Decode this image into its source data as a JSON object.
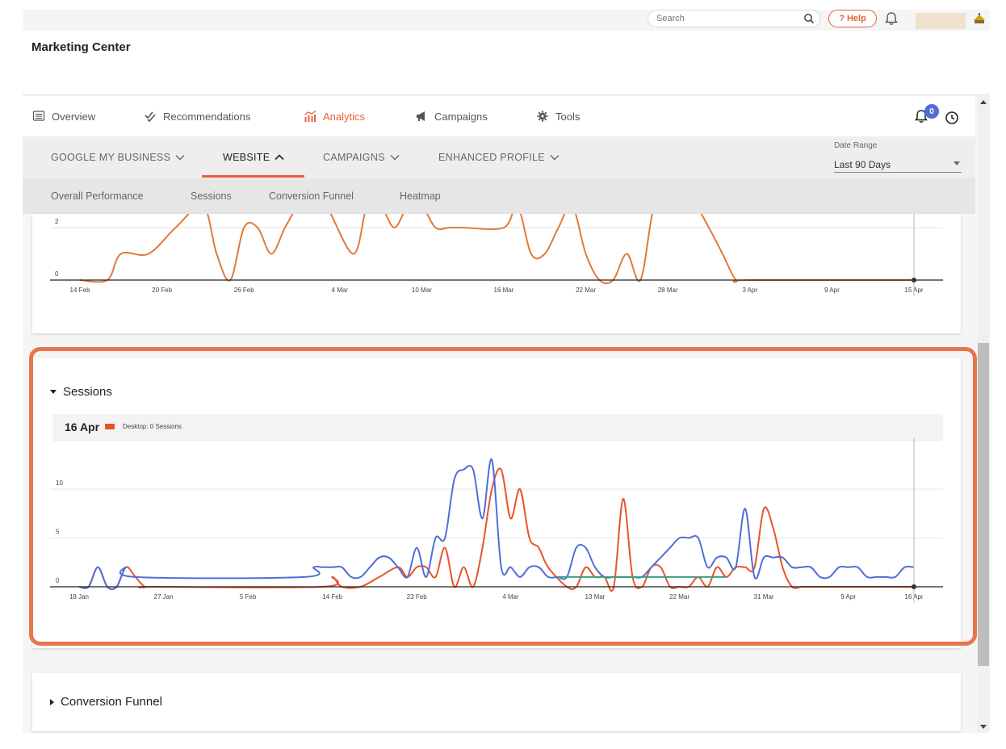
{
  "topbar": {
    "search_placeholder": "Search",
    "help_label": "? Help"
  },
  "header": {
    "title": "Marketing Center"
  },
  "main_nav": [
    {
      "label": "Overview",
      "icon": "list-icon",
      "active": false
    },
    {
      "label": "Recommendations",
      "icon": "double-check-icon",
      "active": false
    },
    {
      "label": "Analytics",
      "icon": "analytics-icon",
      "active": true
    },
    {
      "label": "Campaigns",
      "icon": "megaphone-icon",
      "active": false
    },
    {
      "label": "Tools",
      "icon": "gear-icon",
      "active": false
    }
  ],
  "notifications": {
    "count": "0"
  },
  "sub_nav": [
    {
      "label": "GOOGLE MY BUSINESS",
      "active": false
    },
    {
      "label": "WEBSITE",
      "active": true
    },
    {
      "label": "CAMPAIGNS",
      "active": false
    },
    {
      "label": "ENHANCED PROFILE",
      "active": false
    }
  ],
  "date_range": {
    "label": "Date Range",
    "value": "Last 90 Days"
  },
  "website_tabs": [
    "Overall Performance",
    "Sessions",
    "Conversion Funnel",
    "Heatmap"
  ],
  "colors": {
    "accent": "#e8603c",
    "desktop_series": "#e8542a",
    "mobile_series": "#4f6ed8",
    "tablet_series": "#3aa17e",
    "badge": "#4f6ed8"
  },
  "sessions_card": {
    "title": "Sessions",
    "tooltip": {
      "date": "16 Apr",
      "series": "Desktop",
      "text": "Desktop: 0 Sessions"
    }
  },
  "conversion_card": {
    "title": "Conversion Funnel"
  },
  "chart_data": [
    {
      "type": "line",
      "x_ticks": [
        "14 Feb",
        "20 Feb",
        "26 Feb",
        "4 Mar",
        "10 Mar",
        "16 Mar",
        "22 Mar",
        "28 Mar",
        "3 Apr",
        "9 Apr",
        "15 Apr"
      ],
      "y_ticks": [
        "0",
        "2"
      ],
      "series": [
        {
          "color": "#e07b39",
          "x": [
            "14 Feb",
            "16 Feb",
            "17 Feb",
            "19 Feb",
            "21 Feb",
            "23 Feb",
            "24 Feb",
            "25 Feb",
            "26 Feb",
            "27 Feb",
            "28 Feb",
            "29 Feb",
            "1 Mar",
            "2 Mar",
            "3 Mar",
            "5 Mar",
            "6 Mar",
            "7 Mar",
            "8 Mar",
            "9 Mar",
            "10 Mar",
            "11 Mar",
            "12 Mar",
            "13 Mar",
            "16 Mar",
            "17 Mar",
            "18 Mar",
            "19 Mar",
            "20 Mar",
            "21 Mar",
            "22 Mar",
            "23 Mar",
            "24 Mar",
            "25 Mar",
            "26 Mar",
            "27 Mar",
            "28 Mar",
            "29 Mar",
            "30 Mar",
            "31 Mar",
            "1 Apr",
            "2 Apr",
            "3 Apr",
            "15 Apr"
          ],
          "y": [
            0,
            0,
            1,
            1,
            2,
            3,
            1,
            0,
            2,
            2,
            1,
            2,
            4,
            4,
            3,
            1,
            3,
            4,
            2,
            3,
            4,
            2,
            2,
            2,
            2,
            4,
            1,
            1,
            2,
            3,
            1,
            0,
            0,
            1,
            0,
            4,
            4,
            4,
            3,
            2,
            1,
            0,
            0,
            0
          ]
        }
      ]
    },
    {
      "type": "line",
      "title": "Sessions",
      "x_ticks": [
        "18 Jan",
        "27 Jan",
        "5 Feb",
        "14 Feb",
        "23 Feb",
        "4 Mar",
        "13 Mar",
        "22 Mar",
        "31 Mar",
        "9 Apr",
        "16 Apr"
      ],
      "y_ticks": [
        "0",
        "5",
        "10"
      ],
      "legend": [
        "Desktop"
      ],
      "series": [
        {
          "name": "Desktop",
          "color": "#e8542a",
          "x": [
            "18 Jan",
            "19 Jan",
            "20 Jan",
            "21 Jan",
            "22 Jan",
            "23 Jan",
            "24 Jan",
            "25 Jan",
            "26 Jan",
            "13 Feb",
            "14 Feb",
            "15 Feb",
            "17 Feb",
            "19 Feb",
            "21 Feb",
            "22 Feb",
            "23 Feb",
            "24 Feb",
            "25 Feb",
            "26 Feb",
            "27 Feb",
            "28 Feb",
            "29 Feb",
            "1 Mar",
            "2 Mar",
            "3 Mar",
            "4 Mar",
            "5 Mar",
            "6 Mar",
            "7 Mar",
            "8 Mar",
            "10 Mar",
            "11 Mar",
            "12 Mar",
            "13 Mar",
            "14 Mar",
            "15 Mar",
            "16 Mar",
            "17 Mar",
            "18 Mar",
            "19 Mar",
            "20 Mar",
            "21 Mar",
            "22 Mar",
            "23 Mar",
            "24 Mar",
            "25 Mar",
            "26 Mar",
            "27 Mar",
            "28 Mar",
            "29 Mar",
            "30 Mar",
            "31 Mar",
            "1 Apr",
            "2 Apr",
            "3 Apr",
            "4 Apr",
            "5 Apr",
            "6 Apr",
            "16 Apr"
          ],
          "y": [
            0,
            0,
            2,
            0,
            0,
            2,
            1,
            0,
            0,
            0,
            1,
            0,
            0,
            1,
            2,
            1,
            2,
            2,
            1,
            4,
            0,
            2,
            0,
            4,
            10,
            12,
            7,
            10,
            5,
            4,
            2,
            0,
            0,
            2,
            1,
            1,
            0,
            9,
            1,
            0,
            2,
            2,
            0,
            0,
            0,
            1,
            0,
            2,
            1,
            2,
            2,
            2,
            8,
            6,
            2,
            0,
            0,
            0,
            0,
            0
          ]
        },
        {
          "name": "",
          "color": "#4f6ed8",
          "x": [
            "18 Jan",
            "19 Jan",
            "20 Jan",
            "21 Jan",
            "22 Jan",
            "23 Jan",
            "24 Jan",
            "11 Feb",
            "12 Feb",
            "13 Feb",
            "14 Feb",
            "15 Feb",
            "16 Feb",
            "17 Feb",
            "18 Feb",
            "19 Feb",
            "20 Feb",
            "21 Feb",
            "22 Feb",
            "23 Feb",
            "24 Feb",
            "25 Feb",
            "26 Feb",
            "27 Feb",
            "28 Feb",
            "29 Feb",
            "1 Mar",
            "2 Mar",
            "3 Mar",
            "4 Mar",
            "5 Mar",
            "6 Mar",
            "7 Mar",
            "8 Mar",
            "9 Mar",
            "10 Mar",
            "11 Mar",
            "12 Mar",
            "13 Mar",
            "14 Mar",
            "15 Mar",
            "16 Mar",
            "17 Mar",
            "18 Mar",
            "19 Mar",
            "20 Mar",
            "21 Mar",
            "22 Mar",
            "23 Mar",
            "24 Mar",
            "25 Mar",
            "26 Mar",
            "27 Mar",
            "28 Mar",
            "29 Mar",
            "30 Mar",
            "31 Mar",
            "1 Apr",
            "2 Apr",
            "3 Apr",
            "4 Apr",
            "5 Apr",
            "6 Apr",
            "7 Apr",
            "8 Apr",
            "9 Apr",
            "10 Apr",
            "11 Apr",
            "12 Apr",
            "13 Apr",
            "14 Apr",
            "15 Apr",
            "16 Apr"
          ],
          "y": [
            0,
            0,
            2,
            0,
            0,
            2,
            1,
            1,
            2,
            2,
            2,
            2,
            1,
            1,
            2,
            3,
            3,
            2,
            1,
            4,
            1,
            5,
            5,
            11,
            12,
            12,
            7,
            13,
            2,
            2,
            1,
            2,
            2,
            1,
            1,
            1,
            4,
            4,
            2,
            1,
            1,
            1,
            1,
            1,
            2,
            3,
            4,
            5,
            5,
            5,
            2,
            3,
            3,
            2,
            8,
            1,
            3,
            3,
            3,
            2,
            2,
            2,
            1,
            1,
            2,
            2,
            2,
            1,
            1,
            1,
            1,
            2,
            2
          ]
        },
        {
          "name": "",
          "color": "#3aa17e",
          "x": [
            "9 Mar",
            "27 Mar"
          ],
          "y": [
            1,
            1
          ]
        }
      ]
    }
  ]
}
